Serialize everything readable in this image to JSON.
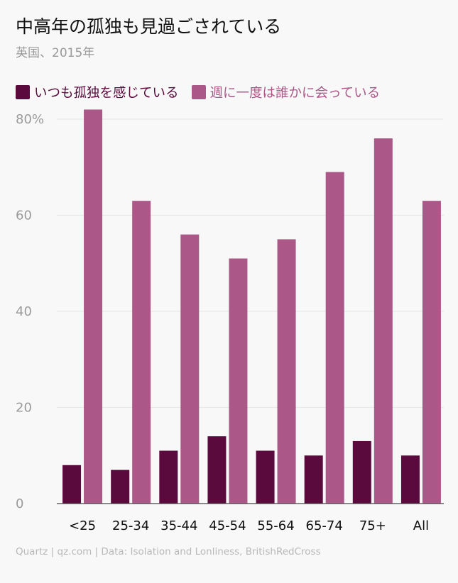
{
  "title": "中高年の孤独も見過ごされている",
  "subtitle": "英国、2015年",
  "footer": "Quartz | qz.com | Data: Isolation and Lonliness, BritishRedCross",
  "colors": {
    "series1": "#5a0a3c",
    "series2": "#ab5787",
    "grid": "#e6e6e6",
    "axis": "#444444",
    "background": "#f8f8f8"
  },
  "chart_data": {
    "type": "bar",
    "title": "中高年の孤独も見過ごされている",
    "subtitle": "英国、2015年",
    "xlabel": "",
    "ylabel": "",
    "ylim": [
      0,
      82
    ],
    "yticks": [
      0,
      20,
      40,
      60,
      80
    ],
    "ytick_labels": [
      "0",
      "20",
      "40",
      "60",
      "80%"
    ],
    "grid": true,
    "legend_position": "top-left",
    "categories": [
      "<25",
      "25-34",
      "35-44",
      "45-54",
      "55-64",
      "65-74",
      "75+",
      "All"
    ],
    "series": [
      {
        "name": "いつも孤独を感じている",
        "values": [
          8,
          7,
          11,
          14,
          11,
          10,
          13,
          10
        ]
      },
      {
        "name": "週に一度は誰かに会っている",
        "values": [
          82,
          63,
          56,
          51,
          55,
          69,
          76,
          63
        ]
      }
    ]
  }
}
